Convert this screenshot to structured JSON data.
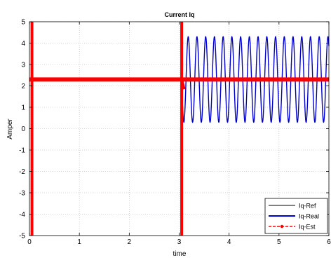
{
  "chart_data": {
    "type": "line",
    "title": "Current Iq",
    "xlabel": "time",
    "ylabel": "Amper",
    "xlim": [
      0,
      6
    ],
    "ylim": [
      -5,
      5
    ],
    "grid": true,
    "legend_position": "bottom-right",
    "x_ticks": [
      0,
      1,
      2,
      3,
      4,
      5,
      6
    ],
    "y_ticks": [
      -5,
      -4,
      -3,
      -2,
      -1,
      0,
      1,
      2,
      3,
      4,
      5
    ],
    "series": [
      {
        "name": "Iq-Ref",
        "color": "#000000",
        "style": "solid",
        "x": [
          0,
          0.05,
          0.05,
          3.05,
          3.05,
          6
        ],
        "y": [
          0,
          0,
          2.3,
          2.3,
          2.3,
          2.3
        ]
      },
      {
        "name": "Iq-Real",
        "color": "#0000cc",
        "style": "solid",
        "description_points": "step up at 0.05 s, reset near 3.05 s, then oscillation between 0.3 and 4.3 A with period about 0.175 s",
        "oscillation": {
          "start": 3.05,
          "end": 6,
          "min": 0.3,
          "max": 4.3,
          "period": 0.175
        },
        "segments": [
          {
            "x": [
              0,
              0.04
            ],
            "y": [
              2.3,
              2.3
            ]
          },
          {
            "x": [
              0.05,
              3.04
            ],
            "y": [
              2.3,
              2.3
            ]
          }
        ]
      },
      {
        "name": "Iq-Est",
        "color": "#ff0000",
        "style": "dashed-marker",
        "x": [
          0,
          3.05,
          3.05,
          6
        ],
        "y": [
          2.3,
          2.3,
          2.3,
          2.3
        ]
      }
    ]
  }
}
